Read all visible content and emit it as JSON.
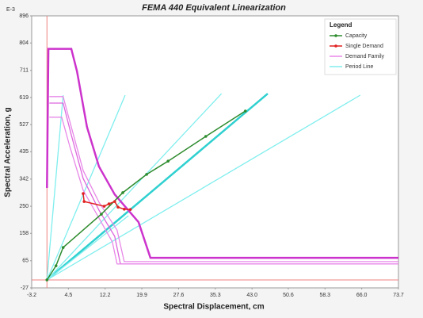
{
  "chart_data": {
    "type": "line",
    "title": "FEMA 440 Equivalent Linearization",
    "x_label": "Spectral Displacement, cm",
    "y_label": "Spectral Acceleration, g",
    "y_multiplier": "E-3",
    "legend_title": "Legend",
    "legend": "top-right",
    "grid": false,
    "xlim": [
      -3.2,
      73.7
    ],
    "ylim": [
      -27,
      896
    ],
    "xticks": [
      -3.2,
      4.5,
      12.2,
      19.9,
      27.6,
      35.3,
      {
        "value": 43,
        "label": "43.0"
      },
      50.6,
      58.3,
      {
        "value": 66,
        "label": "66.0"
      },
      73.7
    ],
    "yticks": [
      -27,
      65,
      158,
      250,
      342,
      435,
      527,
      619,
      711,
      804,
      896
    ],
    "series": [
      {
        "name": "Capacity",
        "color": "#2e8b2e",
        "markers": true,
        "x": [
          0,
          1.9,
          3.4,
          11.4,
          15.9,
          20.9,
          25.4,
          33.3,
          41.6
        ],
        "y": [
          0,
          48,
          110,
          223,
          296,
          358,
          403,
          487,
          573
        ]
      },
      {
        "name": "Single Demand",
        "color": "#e02020",
        "markers": true,
        "x": [
          7.6,
          7.8,
          12.0,
          13.0,
          14.2,
          14.9,
          16.2,
          17.5
        ],
        "y": [
          293,
          266,
          250,
          258,
          266,
          247,
          240,
          239
        ]
      },
      {
        "name": "Demand Family",
        "color": "#e888e8",
        "curves": [
          {
            "color": "#cc33cc",
            "x": [
              0,
              0.3,
              5.1,
              6.3,
              8.4,
              10.9,
              14.2,
              19.2,
              21.7,
              73.7
            ],
            "y": [
              312,
              784,
              784,
              708,
              519,
              385,
              290,
              196,
              75,
              75
            ]
          },
          {
            "color": "#e888e8",
            "x": [
              0.5,
              3.4,
              5.1,
              7.6,
              10.9,
              14.7,
              16.2,
              73.7
            ],
            "y": [
              622,
              622,
              519,
              371,
              264,
              169,
              62,
              62
            ]
          },
          {
            "color": "#dd66dd",
            "x": [
              0.5,
              3.4,
              5.1,
              7.6,
              10.9,
              14.2,
              15.4,
              73.7
            ],
            "y": [
              600,
              600,
              492,
              344,
              237,
              148,
              54,
              54
            ]
          },
          {
            "color": "#e888e8",
            "x": [
              0.5,
              3.1,
              4.8,
              7.6,
              10.9,
              13.7,
              14.7,
              73.7
            ],
            "y": [
              552,
              552,
              452,
              304,
              210,
              129,
              54,
              54
            ]
          }
        ]
      },
      {
        "name": "Period Line",
        "color": "#80eeee",
        "curves": [
          {
            "color": "#30d0d0",
            "x": [
              0,
              46.3
            ],
            "y": [
              0,
              632
            ]
          },
          {
            "color": "#80eeee",
            "x": [
              0,
              3.4
            ],
            "y": [
              0,
              627
            ]
          },
          {
            "color": "#80eeee",
            "x": [
              0,
              16.4
            ],
            "y": [
              0,
              627
            ]
          },
          {
            "color": "#80eeee",
            "x": [
              0,
              36.6
            ],
            "y": [
              0,
              632
            ]
          },
          {
            "color": "#80eeee",
            "x": [
              0,
              65.7
            ],
            "y": [
              0,
              627
            ]
          },
          {
            "color": "#80eeee",
            "x": [
              0,
              17.1
            ],
            "y": [
              0,
              218
            ]
          }
        ]
      }
    ]
  }
}
